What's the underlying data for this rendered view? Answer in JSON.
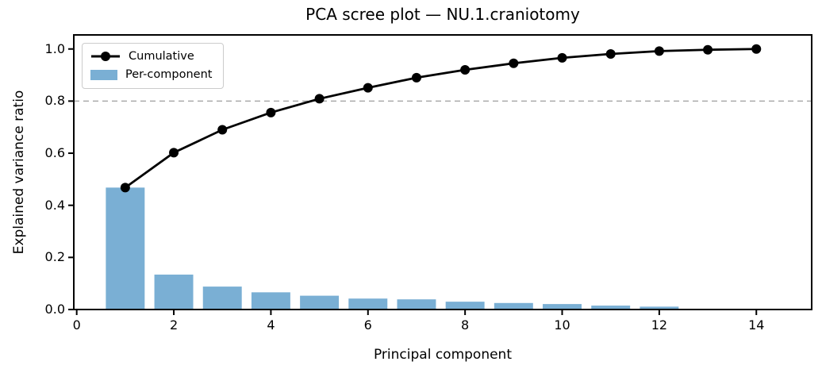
{
  "chart_data": {
    "type": "bar",
    "subtype": "scree-plot-with-cumulative-line",
    "title": "PCA scree plot — NU.1.craniotomy",
    "xlabel": "Principal component",
    "ylabel": "Explained variance ratio",
    "xlim": [
      -0.06,
      15.14
    ],
    "ylim": [
      0,
      1.054
    ],
    "xticks": [
      0,
      2,
      4,
      6,
      8,
      10,
      12,
      14
    ],
    "yticks": [
      "0.0",
      "0.2",
      "0.4",
      "0.6",
      "0.8",
      "1.0"
    ],
    "grid": false,
    "threshold_line": {
      "y": 0.8,
      "style": "dashed",
      "color": "#aaaaaa"
    },
    "bar_width": 0.8,
    "series": [
      {
        "name": "Cumulative",
        "type": "line",
        "color": "#000000",
        "marker": "circle",
        "x": [
          1,
          2,
          3,
          4,
          5,
          6,
          7,
          8,
          9,
          10,
          11,
          12,
          13,
          14
        ],
        "values": [
          0.468,
          0.602,
          0.69,
          0.756,
          0.809,
          0.851,
          0.89,
          0.92,
          0.945,
          0.966,
          0.981,
          0.992,
          0.997,
          1.0
        ]
      },
      {
        "name": "Per-component",
        "type": "bar",
        "color": "#7aafd4",
        "x": [
          1,
          2,
          3,
          4,
          5,
          6,
          7,
          8,
          9,
          10,
          11,
          12
        ],
        "values": [
          0.468,
          0.134,
          0.088,
          0.066,
          0.053,
          0.042,
          0.039,
          0.03,
          0.025,
          0.021,
          0.015,
          0.011
        ]
      }
    ],
    "legend": {
      "position": "upper left",
      "entries": [
        "Cumulative",
        "Per-component"
      ]
    }
  }
}
